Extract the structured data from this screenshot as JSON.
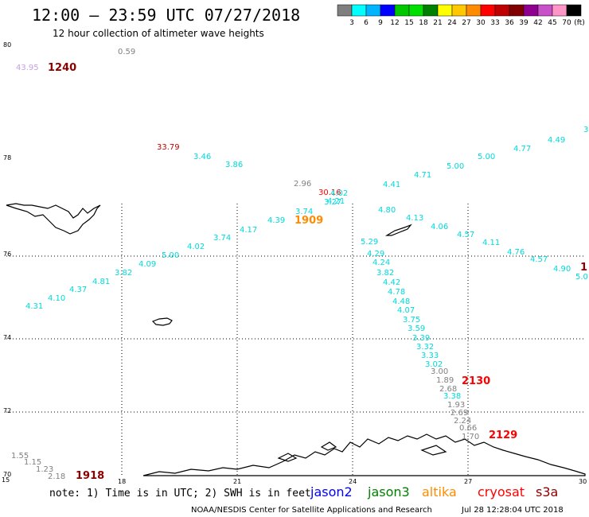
{
  "header": {
    "title": "12:00 – 23:59 UTC 07/27/2018",
    "subtitle": "12 hour collection of altimeter wave heights"
  },
  "colorbar": {
    "colors": [
      "#7f7f7f",
      "#00ffff",
      "#00b4ff",
      "#0000ff",
      "#00c800",
      "#00e000",
      "#008000",
      "#ffff00",
      "#ffc800",
      "#ff8c00",
      "#ff0000",
      "#c00000",
      "#800000",
      "#900090",
      "#c850c8",
      "#ff96c8",
      "#000000"
    ],
    "labels": [
      "3",
      "6",
      "9",
      "12",
      "15",
      "18",
      "21",
      "24",
      "27",
      "30",
      "33",
      "36",
      "39",
      "42",
      "45",
      "70"
    ],
    "unit": "(ft)"
  },
  "axes": {
    "lon_ticks": [
      "15",
      "18",
      "21",
      "24",
      "27",
      "30"
    ],
    "lat_ticks": [
      "80",
      "78",
      "76",
      "74",
      "72",
      "70"
    ]
  },
  "time_labels": [
    {
      "text": "1240",
      "color": "#8b0000"
    },
    {
      "text": "1909",
      "color": "#ff8c00"
    },
    {
      "text": "2130",
      "color": "#ff0000"
    },
    {
      "text": "2129",
      "color": "#ff0000"
    },
    {
      "text": "1918",
      "color": "#8b0000"
    },
    {
      "text": "1",
      "color": "#8b0000"
    }
  ],
  "wave_heights": [
    {
      "text": "0.59",
      "color": "#808080"
    },
    {
      "text": "43.95",
      "color": "#c8a0e0"
    },
    {
      "text": "33.79",
      "color": "#c00000"
    },
    {
      "text": "3.46",
      "color": "#00dada"
    },
    {
      "text": "3.86",
      "color": "#00dada"
    },
    {
      "text": "2.96",
      "color": "#808080"
    },
    {
      "text": "30.16",
      "color": "#ff0000"
    },
    {
      "text": "4.02",
      "color": "#00dada"
    },
    {
      "text": "4.21",
      "color": "#00dada"
    },
    {
      "text": "3.27",
      "color": "#00dada"
    },
    {
      "text": "3.74",
      "color": "#00dada"
    },
    {
      "text": "4.39",
      "color": "#00dada"
    },
    {
      "text": "4.17",
      "color": "#00dada"
    },
    {
      "text": "3.74",
      "color": "#00dada"
    },
    {
      "text": "4.02",
      "color": "#00dada"
    },
    {
      "text": "5.00",
      "color": "#00dada"
    },
    {
      "text": "4.09",
      "color": "#00dada"
    },
    {
      "text": "3.82",
      "color": "#00dada"
    },
    {
      "text": "4.81",
      "color": "#00dada"
    },
    {
      "text": "4.37",
      "color": "#00dada"
    },
    {
      "text": "4.10",
      "color": "#00dada"
    },
    {
      "text": "4.31",
      "color": "#00dada"
    },
    {
      "text": "3",
      "color": "#00dada"
    },
    {
      "text": "4.49",
      "color": "#00dada"
    },
    {
      "text": "4.77",
      "color": "#00dada"
    },
    {
      "text": "5.00",
      "color": "#00dada"
    },
    {
      "text": "5.00",
      "color": "#00dada"
    },
    {
      "text": "4.71",
      "color": "#00dada"
    },
    {
      "text": "4.41",
      "color": "#00dada"
    },
    {
      "text": "4.80",
      "color": "#00dada"
    },
    {
      "text": "4.13",
      "color": "#00dada"
    },
    {
      "text": "4.06",
      "color": "#00dada"
    },
    {
      "text": "4.57",
      "color": "#00dada"
    },
    {
      "text": "4.11",
      "color": "#00dada"
    },
    {
      "text": "4.76",
      "color": "#00dada"
    },
    {
      "text": "4.57",
      "color": "#00dada"
    },
    {
      "text": "4.90",
      "color": "#00dada"
    },
    {
      "text": "5.0",
      "color": "#00dada"
    },
    {
      "text": "5.29",
      "color": "#00dada"
    },
    {
      "text": "4.29",
      "color": "#00dada"
    },
    {
      "text": "4.24",
      "color": "#00dada"
    },
    {
      "text": "3.82",
      "color": "#00dada"
    },
    {
      "text": "4.42",
      "color": "#00dada"
    },
    {
      "text": "4.78",
      "color": "#00dada"
    },
    {
      "text": "4.48",
      "color": "#00dada"
    },
    {
      "text": "4.07",
      "color": "#00dada"
    },
    {
      "text": "3.75",
      "color": "#00dada"
    },
    {
      "text": "3.59",
      "color": "#00dada"
    },
    {
      "text": "3.39",
      "color": "#00dada"
    },
    {
      "text": "3.32",
      "color": "#00dada"
    },
    {
      "text": "3.33",
      "color": "#00dada"
    },
    {
      "text": "3.02",
      "color": "#00dada"
    },
    {
      "text": "3.00",
      "color": "#808080"
    },
    {
      "text": "1.89",
      "color": "#808080"
    },
    {
      "text": "2.68",
      "color": "#808080"
    },
    {
      "text": "3.38",
      "color": "#00dada"
    },
    {
      "text": "1.93",
      "color": "#808080"
    },
    {
      "text": "2.69",
      "color": "#808080"
    },
    {
      "text": "2.24",
      "color": "#808080"
    },
    {
      "text": "0.66",
      "color": "#808080"
    },
    {
      "text": "1.70",
      "color": "#808080"
    },
    {
      "text": "1.55",
      "color": "#808080"
    },
    {
      "text": "1.15",
      "color": "#808080"
    },
    {
      "text": "1.23",
      "color": "#808080"
    },
    {
      "text": "2.18",
      "color": "#808080"
    }
  ],
  "footer": {
    "note": "note: 1) Time is in UTC; 2) SWH is in feet",
    "satellites": [
      {
        "name": "jason2",
        "color": "#0000ff"
      },
      {
        "name": "jason3",
        "color": "#008000"
      },
      {
        "name": "altika",
        "color": "#ff8c00"
      },
      {
        "name": "cryosat",
        "color": "#ff0000"
      },
      {
        "name": "s3a",
        "color": "#8b0000"
      }
    ],
    "credit": "NOAA/NESDIS Center for Satellite Applications and Research",
    "timestamp": "Jul 28 12:28:04 UTC 2018"
  }
}
